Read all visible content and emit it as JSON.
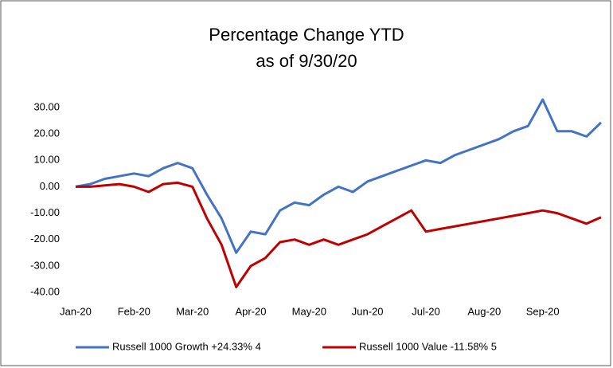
{
  "chart_data": {
    "type": "line",
    "title": [
      "Percentage Change YTD",
      "as of 9/30/20"
    ],
    "categories": [
      "Jan-20",
      null,
      null,
      null,
      "Feb-20",
      null,
      null,
      null,
      "Mar-20",
      null,
      null,
      null,
      "Apr-20",
      null,
      null,
      null,
      "May-20",
      null,
      null,
      null,
      "Jun-20",
      null,
      null,
      null,
      "Jul-20",
      null,
      null,
      null,
      "Aug-20",
      null,
      null,
      null,
      "Sep-20",
      null,
      null,
      null,
      null
    ],
    "series": [
      {
        "name": "Russell 1000 Growth +24.33% 4",
        "color": "#4472c4",
        "values": [
          0,
          1,
          3,
          4,
          5,
          4,
          7,
          9,
          7,
          -3,
          -12,
          -25,
          -17,
          -18,
          -9,
          -6,
          -7,
          -3,
          0,
          -2,
          2,
          4,
          6,
          8,
          10,
          9,
          12,
          14,
          16,
          18,
          21,
          23,
          33,
          21,
          21,
          19,
          24.33
        ]
      },
      {
        "name": "Russell 1000 Value -11.58% 5",
        "color": "#c00000",
        "values": [
          0,
          0,
          0.5,
          1,
          0,
          -2,
          1,
          1.5,
          0,
          -12,
          -22,
          -38,
          -30,
          -27,
          -21,
          -20,
          -22,
          -20,
          -22,
          -20,
          -18,
          -15,
          -12,
          -9,
          -17,
          -16,
          -15,
          -14,
          -13,
          -12,
          -11,
          -10,
          -9,
          -10,
          -12,
          -14,
          -11.58
        ]
      }
    ],
    "ylim": [
      -40,
      35
    ],
    "yticks": [
      {
        "value": -40,
        "label": "-40.00"
      },
      {
        "value": -30,
        "label": "-30.00"
      },
      {
        "value": -20,
        "label": "-20.00"
      },
      {
        "value": -10,
        "label": "-10.00"
      },
      {
        "value": 0,
        "label": "0.00"
      },
      {
        "value": 10,
        "label": "10.00"
      },
      {
        "value": 20,
        "label": "20.00"
      },
      {
        "value": 30,
        "label": "30.00"
      }
    ],
    "grid": false,
    "legend": "bottom"
  }
}
